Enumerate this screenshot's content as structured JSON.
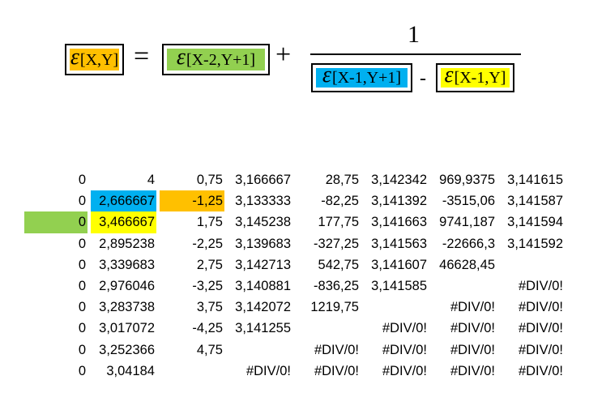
{
  "formula": {
    "lhs": {
      "symbol": "ε",
      "subscript": "[X,Y]",
      "color": "#ffc000"
    },
    "equals": "=",
    "term1": {
      "symbol": "ε",
      "subscript": "[X-2,Y+1]",
      "color": "#92d050"
    },
    "plus": "+",
    "numerator": "1",
    "denominator_left": {
      "symbol": "ε",
      "subscript": "[X-1,Y+1]",
      "color": "#00b0f0"
    },
    "minus": "-",
    "denominator_right": {
      "symbol": "ε",
      "subscript": "[X-1,Y]",
      "color": "#ffff00"
    }
  },
  "table": {
    "rows": [
      [
        "0",
        "4",
        "0,75",
        "3,166667",
        "28,75",
        "3,142342",
        "969,9375",
        "3,141615"
      ],
      [
        "0",
        "2,666667",
        "-1,25",
        "3,133333",
        "-82,25",
        "3,141392",
        "-3515,06",
        "3,141587"
      ],
      [
        "0",
        "3,466667",
        "1,75",
        "3,145238",
        "177,75",
        "3,141663",
        "9741,187",
        "3,141594"
      ],
      [
        "0",
        "2,895238",
        "-2,25",
        "3,139683",
        "-327,25",
        "3,141563",
        "-22666,3",
        "3,141592"
      ],
      [
        "0",
        "3,339683",
        "2,75",
        "3,142713",
        "542,75",
        "3,141607",
        "46628,45",
        ""
      ],
      [
        "0",
        "2,976046",
        "-3,25",
        "3,140881",
        "-836,25",
        "3,141585",
        "",
        "#DIV/0!"
      ],
      [
        "0",
        "3,283738",
        "3,75",
        "3,142072",
        "1219,75",
        "",
        "#DIV/0!",
        "#DIV/0!"
      ],
      [
        "0",
        "3,017072",
        "-4,25",
        "3,141255",
        "",
        "#DIV/0!",
        "#DIV/0!",
        "#DIV/0!"
      ],
      [
        "0",
        "3,252366",
        "4,75",
        "",
        "#DIV/0!",
        "#DIV/0!",
        "#DIV/0!",
        "#DIV/0!"
      ],
      [
        "0",
        "3,04184",
        "",
        "#DIV/0!",
        "#DIV/0!",
        "#DIV/0!",
        "#DIV/0!",
        "#DIV/0!"
      ]
    ],
    "highlights": [
      {
        "row": 1,
        "col": 1,
        "color": "#00b0f0"
      },
      {
        "row": 1,
        "col": 2,
        "color": "#ffc000"
      },
      {
        "row": 2,
        "col": 0,
        "color": "#92d050"
      },
      {
        "row": 2,
        "col": 1,
        "color": "#ffff00"
      }
    ]
  }
}
